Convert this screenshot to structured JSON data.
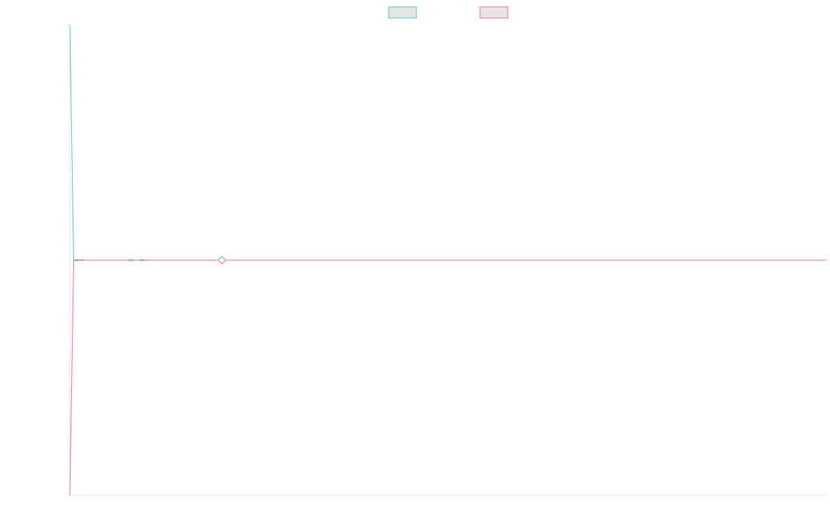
{
  "chart_data": {
    "type": "line",
    "title": "",
    "xlabel": "",
    "ylabel": "",
    "grid": false,
    "legend_position": "top-center",
    "ylim": [
      -1,
      1
    ],
    "x_count": 200,
    "series": [
      {
        "name": "",
        "color": "#4bc0c0",
        "fill": "#e6e6e6",
        "values_sparse": [
          [
            0,
            1.0
          ],
          [
            1,
            0.0
          ],
          [
            2,
            0.003
          ],
          [
            3,
            -0.001
          ],
          [
            16,
            0.003
          ],
          [
            19,
            -0.002
          ],
          [
            40,
            0.016
          ],
          [
            41,
            0.0
          ]
        ]
      },
      {
        "name": "",
        "color": "#ff6384",
        "fill": "#e6e6e6",
        "values_sparse": [
          [
            0,
            -1.0
          ],
          [
            1,
            0.0
          ],
          [
            2,
            -0.002
          ],
          [
            3,
            0.003
          ],
          [
            16,
            -0.003
          ],
          [
            19,
            0.002
          ],
          [
            40,
            -0.016
          ],
          [
            41,
            0.0
          ]
        ]
      }
    ]
  }
}
